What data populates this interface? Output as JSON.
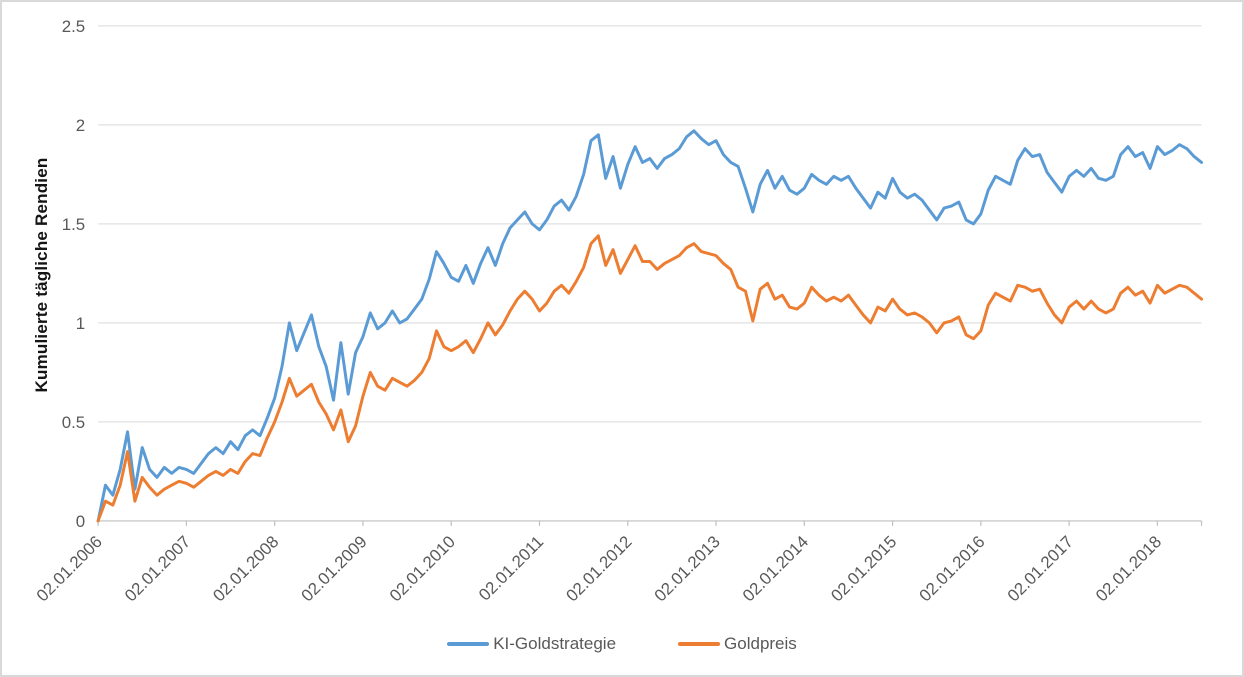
{
  "figure": {
    "background": "#FFFFFF",
    "border_color": "#D9D9D9"
  },
  "chart_data": {
    "type": "line",
    "title": "",
    "ylabel": "Kumulierte tägliche Rendien",
    "xlabel": "",
    "ylim": [
      0,
      2.5
    ],
    "y_ticks": [
      0,
      0.5,
      1,
      1.5,
      2,
      2.5
    ],
    "y_tick_labels": [
      "0",
      "0.5",
      "1",
      "1.5",
      "2",
      "2.5"
    ],
    "grid": "horizontal-only",
    "legend_position": "bottom-center",
    "axis_text_color": "#595959",
    "grid_color": "#D9D9D9",
    "axis_line_color": "#BFBFBF",
    "x_description": "monthly samples from 02.01.2006 to mid 2018",
    "n_points": 151,
    "x_tick_indices": [
      0,
      12,
      24,
      36,
      48,
      60,
      72,
      84,
      96,
      108,
      120,
      132,
      144
    ],
    "x_tick_labels": [
      "02.01.2006",
      "02.01.2007",
      "02.01.2008",
      "02.01.2009",
      "02.01.2010",
      "02.01.2011",
      "02.01.2012",
      "02.01.2013",
      "02.01.2014",
      "02.01.2015",
      "02.01.2016",
      "02.01.2017",
      "02.01.2018"
    ],
    "series": [
      {
        "name": "KI-Goldstrategie",
        "color": "#5B9BD5",
        "values": [
          0.0,
          0.18,
          0.13,
          0.26,
          0.45,
          0.16,
          0.37,
          0.26,
          0.22,
          0.27,
          0.24,
          0.27,
          0.26,
          0.24,
          0.29,
          0.34,
          0.37,
          0.34,
          0.4,
          0.36,
          0.43,
          0.46,
          0.43,
          0.52,
          0.62,
          0.78,
          1.0,
          0.86,
          0.95,
          1.04,
          0.88,
          0.78,
          0.61,
          0.9,
          0.64,
          0.85,
          0.93,
          1.05,
          0.97,
          1.0,
          1.06,
          1.0,
          1.02,
          1.07,
          1.12,
          1.22,
          1.36,
          1.3,
          1.23,
          1.21,
          1.29,
          1.2,
          1.3,
          1.38,
          1.29,
          1.4,
          1.48,
          1.52,
          1.56,
          1.5,
          1.47,
          1.52,
          1.59,
          1.62,
          1.57,
          1.64,
          1.75,
          1.92,
          1.95,
          1.73,
          1.84,
          1.68,
          1.8,
          1.89,
          1.81,
          1.83,
          1.78,
          1.83,
          1.85,
          1.88,
          1.94,
          1.97,
          1.93,
          1.9,
          1.92,
          1.85,
          1.81,
          1.79,
          1.68,
          1.56,
          1.7,
          1.77,
          1.68,
          1.74,
          1.67,
          1.65,
          1.68,
          1.75,
          1.72,
          1.7,
          1.74,
          1.72,
          1.74,
          1.68,
          1.63,
          1.58,
          1.66,
          1.63,
          1.73,
          1.66,
          1.63,
          1.65,
          1.62,
          1.57,
          1.52,
          1.58,
          1.59,
          1.61,
          1.52,
          1.5,
          1.55,
          1.67,
          1.74,
          1.72,
          1.7,
          1.82,
          1.88,
          1.84,
          1.85,
          1.76,
          1.71,
          1.66,
          1.74,
          1.77,
          1.74,
          1.78,
          1.73,
          1.72,
          1.74,
          1.85,
          1.89,
          1.84,
          1.86,
          1.78,
          1.89,
          1.85,
          1.87,
          1.9,
          1.88,
          1.84,
          1.81
        ]
      },
      {
        "name": "Goldpreis",
        "color": "#ED7D31",
        "values": [
          0.0,
          0.1,
          0.08,
          0.18,
          0.35,
          0.1,
          0.22,
          0.17,
          0.13,
          0.16,
          0.18,
          0.2,
          0.19,
          0.17,
          0.2,
          0.23,
          0.25,
          0.23,
          0.26,
          0.24,
          0.3,
          0.34,
          0.33,
          0.42,
          0.5,
          0.6,
          0.72,
          0.63,
          0.66,
          0.69,
          0.6,
          0.54,
          0.46,
          0.56,
          0.4,
          0.48,
          0.63,
          0.75,
          0.68,
          0.66,
          0.72,
          0.7,
          0.68,
          0.71,
          0.75,
          0.82,
          0.96,
          0.88,
          0.86,
          0.88,
          0.91,
          0.85,
          0.92,
          1.0,
          0.94,
          0.99,
          1.06,
          1.12,
          1.16,
          1.12,
          1.06,
          1.1,
          1.16,
          1.19,
          1.15,
          1.21,
          1.28,
          1.4,
          1.44,
          1.29,
          1.37,
          1.25,
          1.32,
          1.39,
          1.31,
          1.31,
          1.27,
          1.3,
          1.32,
          1.34,
          1.38,
          1.4,
          1.36,
          1.35,
          1.34,
          1.3,
          1.27,
          1.18,
          1.16,
          1.01,
          1.17,
          1.2,
          1.12,
          1.14,
          1.08,
          1.07,
          1.1,
          1.18,
          1.14,
          1.11,
          1.13,
          1.11,
          1.14,
          1.09,
          1.04,
          1.0,
          1.08,
          1.06,
          1.12,
          1.07,
          1.04,
          1.05,
          1.03,
          1.0,
          0.95,
          1.0,
          1.01,
          1.03,
          0.94,
          0.92,
          0.96,
          1.09,
          1.15,
          1.13,
          1.11,
          1.19,
          1.18,
          1.16,
          1.17,
          1.1,
          1.04,
          1.0,
          1.08,
          1.11,
          1.07,
          1.11,
          1.07,
          1.05,
          1.07,
          1.15,
          1.18,
          1.14,
          1.16,
          1.1,
          1.19,
          1.15,
          1.17,
          1.19,
          1.18,
          1.15,
          1.12
        ]
      }
    ]
  }
}
